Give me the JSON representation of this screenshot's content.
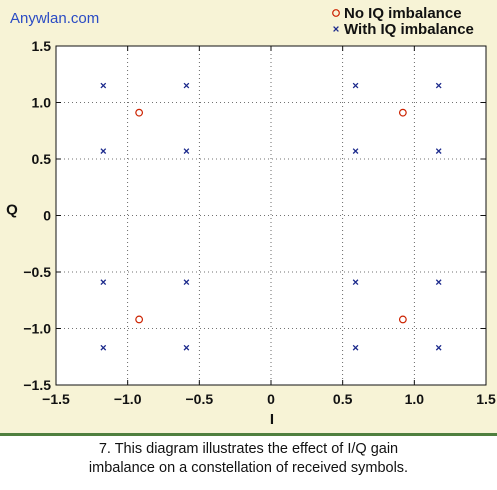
{
  "watermark": "Anywlan.com",
  "caption": {
    "line1": "7. This diagram illustrates the effect of I/Q gain",
    "line2": "imbalance on a constellation of received symbols."
  },
  "colors": {
    "panel_background": "#f7f3d6",
    "ideal_marker": "#cc2200",
    "imbalance_marker": "#1c2a8c",
    "divider": "#4f7f3f",
    "watermark": "#2a4bc4"
  },
  "chart_data": {
    "type": "scatter",
    "xlabel": "I",
    "ylabel": "Q",
    "xlim": [
      -1.5,
      1.5
    ],
    "ylim": [
      -1.5,
      1.5
    ],
    "xticks": [
      -1.5,
      -1.0,
      -0.5,
      0,
      0.5,
      1.0,
      1.5
    ],
    "xtick_labels": [
      "−1.5",
      "−1.0",
      "−0.5",
      "0",
      "0.5",
      "1.0",
      "1.5"
    ],
    "yticks": [
      1.5,
      1.0,
      0.5,
      0,
      -0.5,
      -1.0,
      -1.5
    ],
    "ytick_labels": [
      "1.5",
      "1.0",
      "0.5",
      "0",
      "−0.5",
      "−1.0",
      "−1.5"
    ],
    "grid": "dotted",
    "legend_position": "top-right",
    "series": [
      {
        "name": "No IQ imbalance",
        "marker": "circle",
        "points": [
          [
            -0.92,
            0.91
          ],
          [
            0.92,
            0.91
          ],
          [
            -0.92,
            -0.92
          ],
          [
            0.92,
            -0.92
          ]
        ]
      },
      {
        "name": "With IQ imbalance",
        "marker": "x",
        "points": [
          [
            -1.17,
            1.15
          ],
          [
            -0.59,
            1.15
          ],
          [
            0.59,
            1.15
          ],
          [
            1.17,
            1.15
          ],
          [
            -1.17,
            0.57
          ],
          [
            -0.59,
            0.57
          ],
          [
            0.59,
            0.57
          ],
          [
            1.17,
            0.57
          ],
          [
            -1.17,
            -0.59
          ],
          [
            -0.59,
            -0.59
          ],
          [
            0.59,
            -0.59
          ],
          [
            1.17,
            -0.59
          ],
          [
            -1.17,
            -1.17
          ],
          [
            -0.59,
            -1.17
          ],
          [
            0.59,
            -1.17
          ],
          [
            1.17,
            -1.17
          ]
        ]
      }
    ]
  }
}
